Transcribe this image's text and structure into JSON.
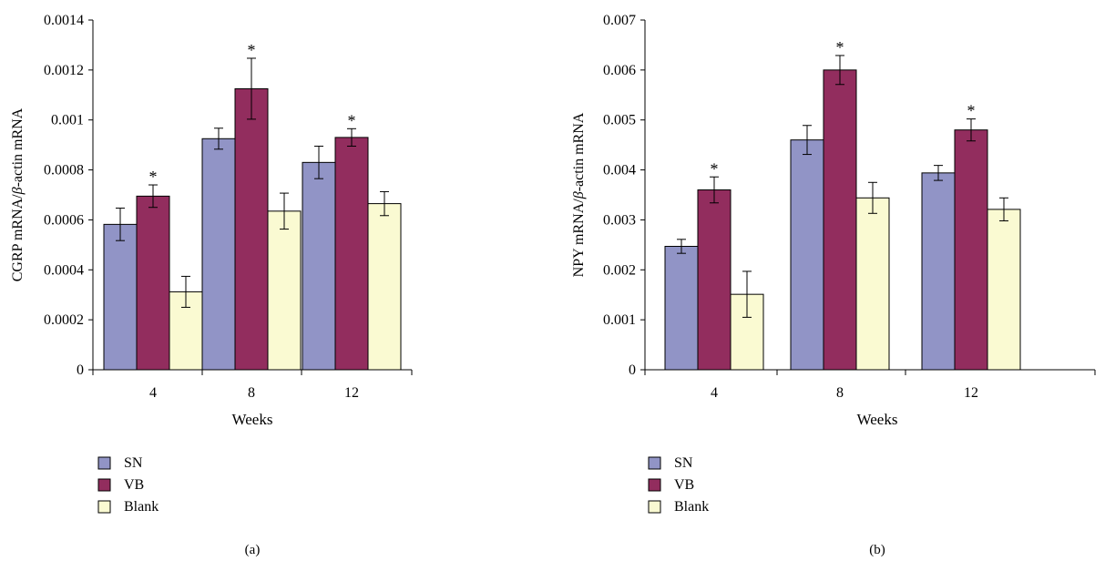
{
  "chart_data": [
    {
      "type": "bar",
      "panel_label": "(a)",
      "xlabel": "Weeks",
      "ylabel_parts": [
        "CGRP mRNA/",
        "β",
        "-actin mRNA"
      ],
      "categories": [
        "4",
        "8",
        "12"
      ],
      "ylim": [
        0,
        0.0014
      ],
      "yticks": [
        "0",
        "0.0002",
        "0.0004",
        "0.0006",
        "0.0008",
        "0.001",
        "0.0012",
        "0.0014"
      ],
      "grid": false,
      "legend_position": "bottom-left",
      "significance_marker": "*",
      "series": [
        {
          "name": "SN",
          "color": "#9194c6",
          "values": [
            0.000582,
            0.000925,
            0.00083
          ],
          "errors": [
            6.5e-05,
            4.2e-05,
            6.5e-05
          ],
          "significant": [
            false,
            false,
            false
          ]
        },
        {
          "name": "VB",
          "color": "#922d5e",
          "values": [
            0.000695,
            0.001125,
            0.00093
          ],
          "errors": [
            4.5e-05,
            0.000122,
            3.5e-05
          ],
          "significant": [
            true,
            true,
            true
          ]
        },
        {
          "name": "Blank",
          "color": "#fafad2",
          "values": [
            0.000312,
            0.000635,
            0.000665
          ],
          "errors": [
            6.2e-05,
            7.2e-05,
            4.8e-05
          ],
          "significant": [
            false,
            false,
            false
          ]
        }
      ]
    },
    {
      "type": "bar",
      "panel_label": "(b)",
      "xlabel": "Weeks",
      "ylabel_parts": [
        "NPY mRNA/",
        "β",
        "-actin mRNA"
      ],
      "categories": [
        "4",
        "8",
        "12"
      ],
      "ylim": [
        0,
        0.007
      ],
      "yticks": [
        "0",
        "0.001",
        "0.002",
        "0.003",
        "0.004",
        "0.005",
        "0.006",
        "0.007"
      ],
      "grid": false,
      "legend_position": "bottom-left",
      "significance_marker": "*",
      "series": [
        {
          "name": "SN",
          "color": "#9194c6",
          "values": [
            0.00247,
            0.0046,
            0.00394
          ],
          "errors": [
            0.00014,
            0.00029,
            0.00015
          ],
          "significant": [
            false,
            false,
            false
          ]
        },
        {
          "name": "VB",
          "color": "#922d5e",
          "values": [
            0.0036,
            0.006,
            0.0048
          ],
          "errors": [
            0.00026,
            0.00029,
            0.00022
          ],
          "significant": [
            true,
            true,
            true
          ]
        },
        {
          "name": "Blank",
          "color": "#fafad2",
          "values": [
            0.00151,
            0.00344,
            0.00321
          ],
          "errors": [
            0.00046,
            0.00031,
            0.00023
          ],
          "significant": [
            false,
            false,
            false
          ]
        }
      ]
    }
  ]
}
